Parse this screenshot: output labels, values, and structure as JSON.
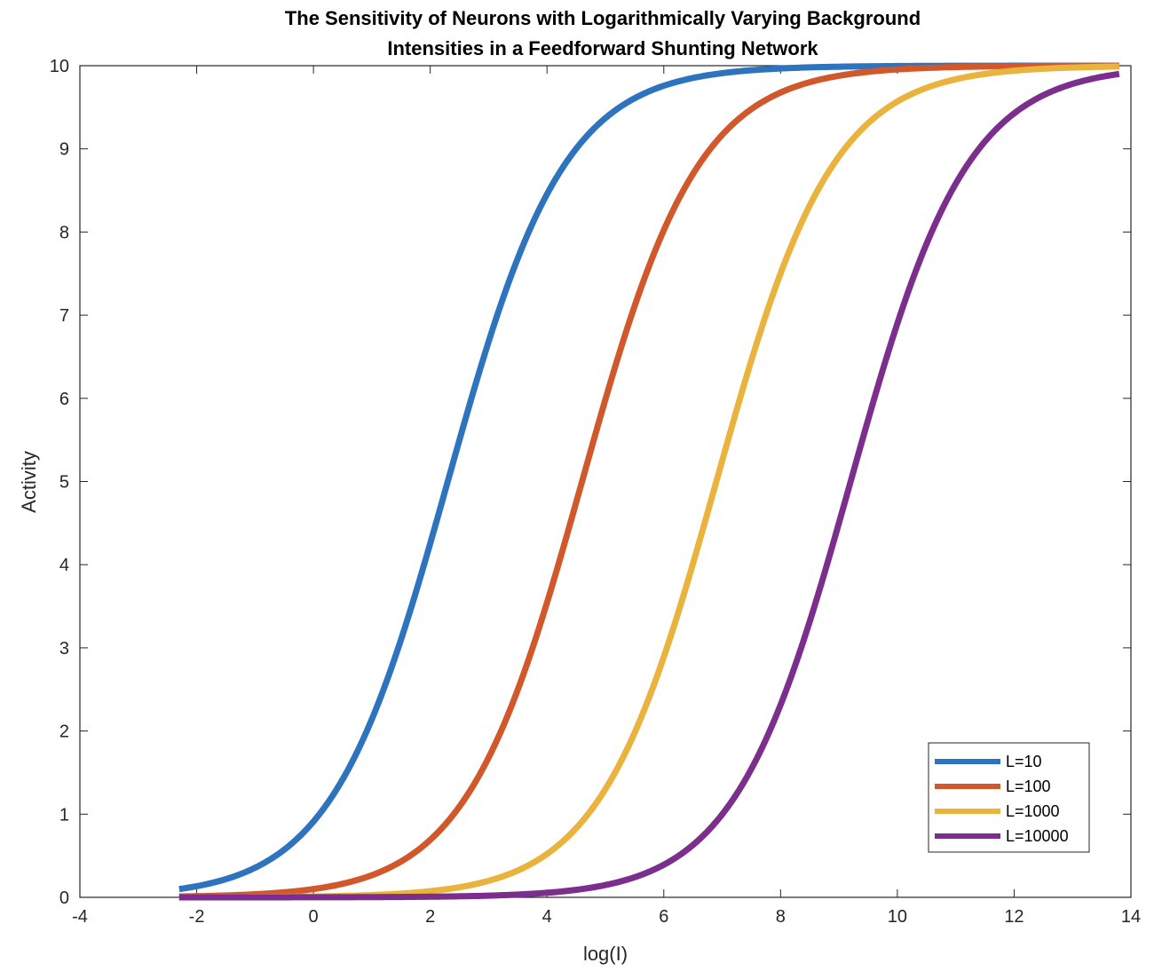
{
  "chart_data": {
    "type": "line",
    "title": [
      "The Sensitivity of Neurons with Logarithmically Varying Background",
      "Intensities in a Feedforward Shunting Network"
    ],
    "xlabel": "log(I)",
    "ylabel": "Activity",
    "xlim": [
      -4,
      14
    ],
    "ylim": [
      0,
      10
    ],
    "xticks": [
      -4,
      -2,
      0,
      2,
      4,
      6,
      8,
      10,
      12,
      14
    ],
    "yticks": [
      0,
      1,
      2,
      3,
      4,
      5,
      6,
      7,
      8,
      9,
      10
    ],
    "x_range": [
      -2.3,
      13.8
    ],
    "grid": false,
    "legend_position": "bottom-right",
    "series": [
      {
        "name": "L=10",
        "label": "L=10",
        "color": "#2E73BE",
        "center": 2.3,
        "scale": 1.0,
        "ymax": 10
      },
      {
        "name": "L=100",
        "label": "L=100",
        "color": "#D0582A",
        "center": 4.6,
        "scale": 1.0,
        "ymax": 10
      },
      {
        "name": "L=1000",
        "label": "L=1000",
        "color": "#E9B33E",
        "center": 6.9,
        "scale": 1.0,
        "ymax": 10
      },
      {
        "name": "L=10000",
        "label": "L=10000",
        "color": "#7B2E8C",
        "center": 9.2,
        "scale": 1.0,
        "ymax": 10
      }
    ]
  }
}
